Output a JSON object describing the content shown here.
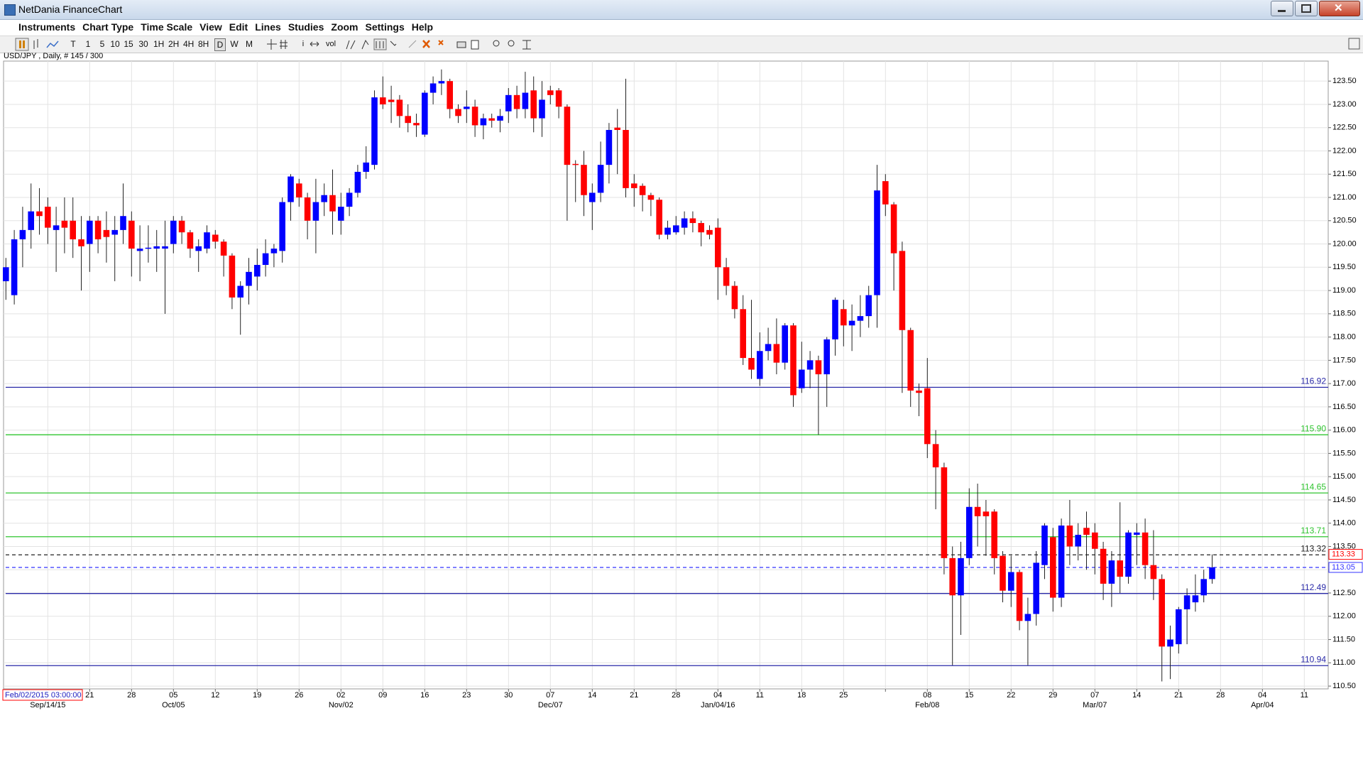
{
  "window": {
    "title": "NetDania FinanceChart"
  },
  "menu": [
    "Instruments",
    "Chart Type",
    "Time Scale",
    "View",
    "Edit",
    "Lines",
    "Studies",
    "Zoom",
    "Settings",
    "Help"
  ],
  "toolbar": {
    "timeframes": [
      "T",
      "1",
      "5",
      "10",
      "15",
      "30",
      "1H",
      "2H",
      "4H",
      "8H",
      "D",
      "W",
      "M"
    ],
    "selected": "D",
    "tools": [
      "i",
      "vol"
    ]
  },
  "chart_data": {
    "type": "candlestick",
    "title": "USD/JPY , Daily, # 145 / 300",
    "cursor_label": "Feb/02/2015 03:00:00",
    "categories": [
      null,
      null,
      null,
      null,
      null,
      null,
      null,
      null,
      null,
      null,
      "21",
      null,
      null,
      null,
      null,
      "28",
      null,
      null,
      null,
      null,
      "05",
      null,
      null,
      null,
      null,
      "12",
      null,
      null,
      null,
      null,
      "19",
      null,
      null,
      null,
      null,
      "26",
      null,
      null,
      null,
      null,
      "02",
      null,
      null,
      null,
      null,
      "09",
      null,
      null,
      null,
      null,
      "16",
      null,
      null,
      null,
      null,
      "23",
      null,
      null,
      null,
      null,
      "30",
      null,
      null,
      null,
      null,
      "07",
      null,
      null,
      null,
      null,
      "14",
      null,
      null,
      null,
      null,
      "21",
      null,
      null,
      null,
      null,
      "28",
      null,
      null,
      null,
      null,
      "04",
      null,
      null,
      null,
      null,
      "11",
      null,
      null,
      null,
      null,
      "18",
      null,
      null,
      null,
      null,
      "25",
      null,
      null,
      null,
      null,
      null,
      null,
      null,
      null,
      null,
      "08",
      null,
      null,
      null,
      null,
      "15",
      null,
      null,
      null,
      null,
      "22",
      null,
      null,
      null,
      null,
      "29",
      null,
      null,
      null,
      null,
      "07",
      null,
      null,
      null,
      null,
      "14",
      null,
      null,
      null,
      null,
      "21",
      null,
      null,
      null,
      null,
      "28",
      null,
      null,
      null,
      null,
      "04",
      null,
      null,
      null,
      null,
      "11",
      null
    ],
    "month_labels": [
      null,
      null,
      null,
      null,
      null,
      "Sep/14/15",
      null,
      null,
      null,
      null,
      null,
      null,
      null,
      null,
      null,
      null,
      null,
      null,
      null,
      null,
      "Oct/05",
      null,
      null,
      null,
      null,
      null,
      null,
      null,
      null,
      null,
      null,
      null,
      null,
      null,
      null,
      null,
      null,
      null,
      null,
      null,
      "Nov/02",
      null,
      null,
      null,
      null,
      null,
      null,
      null,
      null,
      null,
      null,
      null,
      null,
      null,
      null,
      null,
      null,
      null,
      null,
      null,
      null,
      null,
      null,
      null,
      null,
      "Dec/07",
      null,
      null,
      null,
      null,
      null,
      null,
      null,
      null,
      null,
      null,
      null,
      null,
      null,
      null,
      null,
      null,
      null,
      null,
      null,
      "Jan/04/16",
      null,
      null,
      null,
      null,
      null,
      null,
      null,
      null,
      null,
      null,
      null,
      null,
      null,
      null,
      null,
      null,
      null,
      null,
      null,
      null,
      null,
      null,
      null,
      null,
      "Feb/08",
      null,
      null,
      null,
      null,
      null,
      null,
      null,
      null,
      null,
      null,
      null,
      null,
      null,
      null,
      null,
      null,
      null,
      null,
      null,
      "Mar/07",
      null,
      null,
      null,
      null,
      null,
      null,
      null,
      null,
      null,
      null,
      null,
      null,
      null,
      null,
      null,
      null,
      null,
      null,
      null,
      "Apr/04",
      null,
      null,
      null,
      null,
      null,
      null
    ],
    "open": [
      119.2,
      118.9,
      120.1,
      120.3,
      120.7,
      120.8,
      120.3,
      120.5,
      120.5,
      120.1,
      120.0,
      120.5,
      120.3,
      120.2,
      120.3,
      120.5,
      119.85,
      119.9,
      119.9,
      119.9,
      120.0,
      120.5,
      120.25,
      119.85,
      119.9,
      120.2,
      120.05,
      119.75,
      118.85,
      119.1,
      119.3,
      119.55,
      119.8,
      119.85,
      120.9,
      121.3,
      121.0,
      120.5,
      120.9,
      121.05,
      120.5,
      120.8,
      121.1,
      121.55,
      121.7,
      123.15,
      123.1,
      123.1,
      122.75,
      122.6,
      122.35,
      123.25,
      123.45,
      123.5,
      122.9,
      122.9,
      122.95,
      122.55,
      122.7,
      122.65,
      122.85,
      123.2,
      122.9,
      123.3,
      122.7,
      123.3,
      123.3,
      122.95,
      121.72,
      121.7,
      120.9,
      121.1,
      121.7,
      122.5,
      122.45,
      121.3,
      121.25,
      121.05,
      120.95,
      120.2,
      120.25,
      120.35,
      120.55,
      120.45,
      120.3,
      120.35,
      119.5,
      119.1,
      118.6,
      117.55,
      117.1,
      117.7,
      117.85,
      117.45,
      118.25,
      116.9,
      117.3,
      117.5,
      117.2,
      117.95,
      118.6,
      118.25,
      118.35,
      118.45,
      118.9,
      121.35,
      120.85,
      119.85,
      118.15,
      116.85,
      116.9,
      115.7,
      115.2,
      113.25,
      112.45,
      113.25,
      114.35,
      114.25,
      114.25,
      113.3,
      112.55,
      112.95,
      111.9,
      112.05,
      113.1,
      113.7,
      112.4,
      113.95,
      113.5,
      113.9,
      113.8,
      113.45,
      112.7,
      113.2,
      112.85,
      113.75,
      113.8,
      113.1,
      112.8,
      111.35,
      111.4,
      112.15,
      112.3,
      112.45,
      112.8,
      null,
      null,
      null,
      null,
      null,
      null,
      null,
      null,
      null,
      null,
      null,
      null
    ],
    "high": [
      119.7,
      120.3,
      120.8,
      121.3,
      121.2,
      121.0,
      120.8,
      121.0,
      121.0,
      120.6,
      120.6,
      120.6,
      120.7,
      120.6,
      121.3,
      120.7,
      120.4,
      120.4,
      120.3,
      120.5,
      120.6,
      120.6,
      120.3,
      120.1,
      120.4,
      120.3,
      120.1,
      119.8,
      119.2,
      119.7,
      119.9,
      120.1,
      120.0,
      121.0,
      121.5,
      121.4,
      121.1,
      121.4,
      121.3,
      121.6,
      121.1,
      121.2,
      121.7,
      122.1,
      123.3,
      123.6,
      123.4,
      123.2,
      123.0,
      122.8,
      123.3,
      123.6,
      123.75,
      123.55,
      123.0,
      123.3,
      123.1,
      122.8,
      122.8,
      122.9,
      123.35,
      123.4,
      123.7,
      123.6,
      123.5,
      123.4,
      123.35,
      123.0,
      121.8,
      122.0,
      121.3,
      122.2,
      122.6,
      122.9,
      123.55,
      121.5,
      121.3,
      121.1,
      121.0,
      120.5,
      120.6,
      120.7,
      120.7,
      120.5,
      120.4,
      120.55,
      119.7,
      119.2,
      118.9,
      118.8,
      118.1,
      118.2,
      118.4,
      118.3,
      118.3,
      117.9,
      117.7,
      117.6,
      118.0,
      118.85,
      118.8,
      118.7,
      118.9,
      119.1,
      121.7,
      121.5,
      120.9,
      120.05,
      118.2,
      117.0,
      117.55,
      116.0,
      115.3,
      113.5,
      113.6,
      114.75,
      114.85,
      114.5,
      114.3,
      113.4,
      113.3,
      113.0,
      112.4,
      113.4,
      114.0,
      113.9,
      114.1,
      114.5,
      114.0,
      114.25,
      114.0,
      113.6,
      113.4,
      114.45,
      113.85,
      114.0,
      114.1,
      113.85,
      112.9,
      111.8,
      112.2,
      112.6,
      112.9,
      113.0,
      113.33,
      null,
      null,
      null,
      null,
      null,
      null,
      null,
      null,
      null,
      null,
      null,
      null
    ],
    "low": [
      118.8,
      118.7,
      119.5,
      119.9,
      120.2,
      120.0,
      119.4,
      119.8,
      119.7,
      119.0,
      119.4,
      119.8,
      119.6,
      119.2,
      120.0,
      119.3,
      119.2,
      119.6,
      119.4,
      118.5,
      119.8,
      120.0,
      119.7,
      119.4,
      119.8,
      119.9,
      119.3,
      118.6,
      118.05,
      118.7,
      119.0,
      119.3,
      119.5,
      119.6,
      120.5,
      120.8,
      120.1,
      119.8,
      120.6,
      120.2,
      120.2,
      120.6,
      121.0,
      121.4,
      121.6,
      122.9,
      122.6,
      122.5,
      122.4,
      122.3,
      122.3,
      123.0,
      123.2,
      122.7,
      122.6,
      122.6,
      122.3,
      122.25,
      122.5,
      122.4,
      122.6,
      122.7,
      122.7,
      122.4,
      122.3,
      123.0,
      122.7,
      120.5,
      120.9,
      120.6,
      120.3,
      120.9,
      121.3,
      121.5,
      121.0,
      120.8,
      120.7,
      120.6,
      120.1,
      120.1,
      120.2,
      120.2,
      120.25,
      119.95,
      120.1,
      118.8,
      118.9,
      118.4,
      117.4,
      117.1,
      116.95,
      117.5,
      117.2,
      117.3,
      116.5,
      116.8,
      116.9,
      115.9,
      116.5,
      117.6,
      117.8,
      117.7,
      118.0,
      118.2,
      118.2,
      120.6,
      119.0,
      116.8,
      116.5,
      116.3,
      115.4,
      114.3,
      112.9,
      110.95,
      111.6,
      113.1,
      113.5,
      113.3,
      112.9,
      112.3,
      112.2,
      111.7,
      110.95,
      111.8,
      112.8,
      112.1,
      112.2,
      113.1,
      113.2,
      113.0,
      112.9,
      112.35,
      112.2,
      112.5,
      112.7,
      113.1,
      112.8,
      112.35,
      110.6,
      110.65,
      111.2,
      111.4,
      112.1,
      112.3,
      112.7,
      null,
      null,
      null,
      null,
      null,
      null,
      null,
      null,
      null,
      null,
      null,
      null
    ],
    "close": [
      119.5,
      120.1,
      120.3,
      120.7,
      120.6,
      120.35,
      120.4,
      120.35,
      120.1,
      119.95,
      120.5,
      120.1,
      120.15,
      120.3,
      120.6,
      119.9,
      119.9,
      119.92,
      119.95,
      119.95,
      120.5,
      120.25,
      119.9,
      119.95,
      120.25,
      120.05,
      119.75,
      118.85,
      119.1,
      119.4,
      119.55,
      119.8,
      119.9,
      120.9,
      121.45,
      121.0,
      120.5,
      120.9,
      121.05,
      120.7,
      120.8,
      121.1,
      121.55,
      121.75,
      123.15,
      123.0,
      123.05,
      122.75,
      122.6,
      122.55,
      123.25,
      123.45,
      123.5,
      122.9,
      122.75,
      122.95,
      122.55,
      122.7,
      122.65,
      122.75,
      123.2,
      122.9,
      123.25,
      122.7,
      123.1,
      123.2,
      122.95,
      121.7,
      121.7,
      121.05,
      121.1,
      121.7,
      122.45,
      122.45,
      121.2,
      121.2,
      121.05,
      120.95,
      120.2,
      120.35,
      120.4,
      120.55,
      120.45,
      120.25,
      120.2,
      119.5,
      119.1,
      118.6,
      117.55,
      117.3,
      117.7,
      117.85,
      117.45,
      118.25,
      116.75,
      117.3,
      117.5,
      117.2,
      117.95,
      118.8,
      118.25,
      118.35,
      118.45,
      118.9,
      121.15,
      120.85,
      119.8,
      118.15,
      116.85,
      116.8,
      115.7,
      115.2,
      113.25,
      112.45,
      113.25,
      114.35,
      114.15,
      114.15,
      113.25,
      112.55,
      112.95,
      111.9,
      112.05,
      113.15,
      113.95,
      112.4,
      113.95,
      113.5,
      113.75,
      113.75,
      113.45,
      112.7,
      113.2,
      112.85,
      113.8,
      113.8,
      113.1,
      112.8,
      111.35,
      111.5,
      112.15,
      112.45,
      112.45,
      112.8,
      113.05,
      null,
      null,
      null,
      null,
      null,
      null,
      null,
      null,
      null,
      null,
      null,
      null
    ],
    "up_color": "#0000ff",
    "down_color": "#ff0000",
    "ylim": [
      110.44,
      123.93
    ],
    "yticks": [
      {
        "value": 110.5,
        "label": "110.50"
      },
      {
        "value": 111,
        "label": "111.00"
      },
      {
        "value": 111.5,
        "label": "111.50"
      },
      {
        "value": 112,
        "label": "112.00"
      },
      {
        "value": 112.5,
        "label": "112.50"
      },
      {
        "value": 113,
        "label": "113.00"
      },
      {
        "value": 113.5,
        "label": "113.50"
      },
      {
        "value": 114,
        "label": "114.00"
      },
      {
        "value": 114.5,
        "label": "114.50"
      },
      {
        "value": 115,
        "label": "115.00"
      },
      {
        "value": 115.5,
        "label": "115.50"
      },
      {
        "value": 116,
        "label": "116.00"
      },
      {
        "value": 116.5,
        "label": "116.50"
      },
      {
        "value": 117,
        "label": "117.00"
      },
      {
        "value": 117.5,
        "label": "117.50"
      },
      {
        "value": 118,
        "label": "118.00"
      },
      {
        "value": 118.5,
        "label": "118.50"
      },
      {
        "value": 119,
        "label": "119.00"
      },
      {
        "value": 119.5,
        "label": "119.50"
      },
      {
        "value": 120,
        "label": "120.00"
      },
      {
        "value": 120.5,
        "label": "120.50"
      },
      {
        "value": 121,
        "label": "121.00"
      },
      {
        "value": 121.5,
        "label": "121.50"
      },
      {
        "value": 122,
        "label": "122.00"
      },
      {
        "value": 122.5,
        "label": "122.50"
      },
      {
        "value": 123,
        "label": "123.00"
      },
      {
        "value": 123.5,
        "label": "123.50"
      }
    ],
    "grid": true,
    "levels": [
      {
        "value": 116.92,
        "label": "116.92",
        "color": "#2a2aa8",
        "dashed": false,
        "boxed": false
      },
      {
        "value": 115.9,
        "label": "115.90",
        "color": "#2fc42f",
        "dashed": false,
        "boxed": false
      },
      {
        "value": 114.65,
        "label": "114.65",
        "color": "#2fc42f",
        "dashed": false,
        "boxed": false
      },
      {
        "value": 113.71,
        "label": "113.71",
        "color": "#2fc42f",
        "dashed": false,
        "boxed": false
      },
      {
        "value": 113.32,
        "label": "113.32",
        "color": "#222222",
        "dashed": true,
        "boxed": false
      },
      {
        "value": 113.05,
        "label": "113.05",
        "color": "#3333ff",
        "dashed": true,
        "boxed": true
      },
      {
        "value": 112.49,
        "label": "112.49",
        "color": "#2a2aa8",
        "dashed": false,
        "boxed": false
      },
      {
        "value": 110.94,
        "label": "110.94",
        "color": "#2a2aa8",
        "dashed": false,
        "boxed": false
      }
    ],
    "price_marker": {
      "value": 113.33,
      "label": "113.33",
      "color": "#ff0000"
    }
  }
}
